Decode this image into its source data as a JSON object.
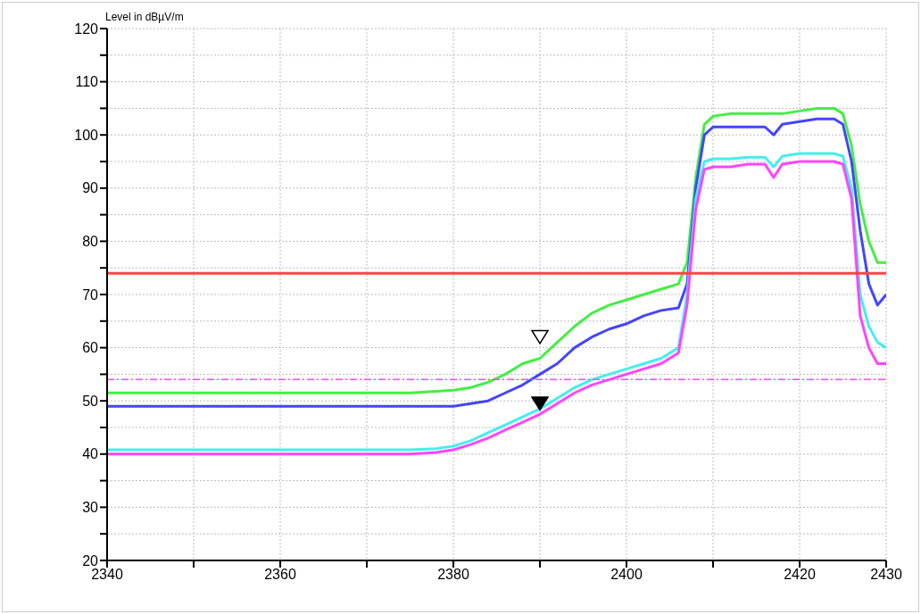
{
  "chart_data": {
    "type": "line",
    "ylabel": "Level in dBµV/m",
    "xlim": [
      2340,
      2430
    ],
    "ylim": [
      20,
      120
    ],
    "xticks": [
      2340,
      {
        "value": 2350,
        "label": null
      },
      2360,
      {
        "value": 2370,
        "label": null
      },
      2380,
      {
        "value": 2390,
        "label": null
      },
      2400,
      {
        "value": 2410,
        "label": null
      },
      2420,
      2430
    ],
    "yticks": [
      20,
      {
        "value": 25,
        "label": null
      },
      30,
      {
        "value": 35,
        "label": null
      },
      40,
      {
        "value": 45,
        "label": null
      },
      50,
      {
        "value": 55,
        "label": null
      },
      60,
      {
        "value": 65,
        "label": null
      },
      70,
      {
        "value": 75,
        "label": null
      },
      80,
      {
        "value": 85,
        "label": null
      },
      90,
      {
        "value": 95,
        "label": null
      },
      100,
      {
        "value": 105,
        "label": null
      },
      110,
      {
        "value": 115,
        "label": null
      },
      120
    ],
    "grid": true,
    "marker": "none",
    "line_style": "solid",
    "ref_lines": [
      {
        "axis": "y",
        "value": 74,
        "color": "#ff4444",
        "line_style": "solid"
      },
      {
        "axis": "y",
        "value": 54,
        "color": "#ff44ff",
        "line_style": "dashed"
      }
    ],
    "series": [
      {
        "color": "#44ee44",
        "x": [
          2340,
          2345,
          2350,
          2355,
          2360,
          2365,
          2370,
          2375,
          2380,
          2382,
          2384,
          2386,
          2388,
          2390,
          2392,
          2394,
          2396,
          2398,
          2400,
          2402,
          2404,
          2406,
          2407,
          2408,
          2409,
          2410,
          2412,
          2414,
          2416,
          2418,
          2420,
          2422,
          2424,
          2425,
          2426,
          2427,
          2428,
          2429,
          2430
        ],
        "values": [
          51.5,
          51.5,
          51.5,
          51.5,
          51.5,
          51.5,
          51.5,
          51.5,
          52,
          52.5,
          53.5,
          55,
          57,
          58,
          61,
          64,
          66.5,
          68,
          69,
          70,
          71,
          72,
          76,
          92,
          102,
          103.5,
          104,
          104,
          104,
          104,
          104.5,
          105,
          105,
          104,
          98,
          87,
          80,
          76,
          76
        ]
      },
      {
        "color": "#4444ff",
        "x": [
          2340,
          2345,
          2350,
          2355,
          2360,
          2365,
          2370,
          2375,
          2380,
          2382,
          2384,
          2386,
          2388,
          2390,
          2392,
          2394,
          2396,
          2398,
          2400,
          2402,
          2404,
          2406,
          2407,
          2408,
          2409,
          2410,
          2412,
          2414,
          2416,
          2417,
          2418,
          2420,
          2422,
          2424,
          2425,
          2426,
          2427,
          2428,
          2429,
          2430
        ],
        "values": [
          49,
          49,
          49,
          49,
          49,
          49,
          49,
          49,
          49,
          49.5,
          50,
          51.5,
          53,
          55,
          57,
          60,
          62,
          63.5,
          64.5,
          66,
          67,
          67.5,
          72,
          90,
          100,
          101.5,
          101.5,
          101.5,
          101.5,
          100,
          102,
          102.5,
          103,
          103,
          102,
          95,
          82,
          72,
          68,
          70
        ]
      },
      {
        "color": "#44eeee",
        "x": [
          2340,
          2345,
          2350,
          2355,
          2360,
          2365,
          2370,
          2375,
          2378,
          2380,
          2382,
          2384,
          2386,
          2388,
          2390,
          2392,
          2394,
          2396,
          2398,
          2400,
          2402,
          2404,
          2406,
          2407,
          2408,
          2409,
          2410,
          2412,
          2414,
          2416,
          2417,
          2418,
          2420,
          2422,
          2424,
          2425,
          2426,
          2427,
          2428,
          2429,
          2430
        ],
        "values": [
          40.8,
          40.8,
          40.8,
          40.8,
          40.8,
          40.8,
          40.8,
          40.8,
          41,
          41.5,
          42.5,
          44,
          45.5,
          47,
          48.5,
          50.5,
          52.5,
          54,
          55,
          56,
          57,
          58,
          60,
          70,
          88,
          95,
          95.5,
          95.5,
          95.8,
          95.8,
          94,
          96,
          96.5,
          96.5,
          96.5,
          96,
          90,
          70,
          64,
          61,
          60
        ]
      },
      {
        "color": "#ff44ff",
        "x": [
          2340,
          2345,
          2350,
          2355,
          2360,
          2365,
          2370,
          2375,
          2378,
          2380,
          2382,
          2384,
          2386,
          2388,
          2390,
          2392,
          2394,
          2396,
          2398,
          2400,
          2402,
          2404,
          2406,
          2407,
          2408,
          2409,
          2410,
          2412,
          2414,
          2416,
          2417,
          2418,
          2420,
          2422,
          2424,
          2425,
          2426,
          2427,
          2428,
          2429,
          2430
        ],
        "values": [
          40,
          40,
          40,
          40,
          40,
          40,
          40,
          40,
          40.3,
          40.8,
          41.8,
          43,
          44.5,
          46,
          47.5,
          49.5,
          51.5,
          53,
          54,
          55,
          56,
          57,
          59,
          68,
          86,
          93.5,
          94,
          94,
          94.5,
          94.5,
          92,
          94.5,
          95,
          95,
          95,
          94.5,
          88,
          66,
          60,
          57,
          57
        ]
      },
      {
        "type": "scatter",
        "marker": "triangle",
        "color": "#ffffff",
        "x": [
          2390
        ],
        "values": [
          62
        ]
      },
      {
        "type": "scatter",
        "marker": "triangle",
        "color": "#000000",
        "x": [
          2390
        ],
        "values": [
          49.5
        ]
      }
    ]
  }
}
